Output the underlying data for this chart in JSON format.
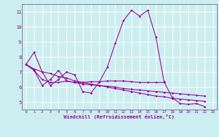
{
  "background_color": "#cceef0",
  "line_color": "#990099",
  "grid_color": "#ffffff",
  "xlabel": "Windchill (Refroidissement éolien,°C)",
  "xlabel_color": "#990099",
  "tick_color": "#990099",
  "spine_color": "#666688",
  "xlim": [
    -0.5,
    23.5
  ],
  "ylim": [
    4.5,
    11.5
  ],
  "yticks": [
    5,
    6,
    7,
    8,
    9,
    10,
    11
  ],
  "xticks": [
    0,
    1,
    2,
    3,
    4,
    5,
    6,
    7,
    8,
    9,
    10,
    11,
    12,
    13,
    14,
    15,
    16,
    17,
    18,
    19,
    20,
    21,
    22,
    23
  ],
  "series": [
    [
      7.5,
      8.3,
      7.0,
      6.1,
      6.5,
      7.0,
      6.8,
      5.7,
      5.6,
      6.3,
      7.3,
      8.9,
      10.4,
      11.1,
      10.7,
      11.1,
      9.3,
      6.35,
      5.3,
      4.9,
      4.85,
      4.9,
      4.7
    ],
    [
      7.5,
      7.1,
      6.1,
      6.5,
      7.1,
      6.4,
      6.3,
      6.3,
      6.35,
      6.35,
      6.4,
      6.4,
      6.4,
      6.35,
      6.3,
      6.3,
      6.3,
      6.3
    ],
    [
      7.5,
      7.2,
      7.0,
      6.9,
      6.7,
      6.6,
      6.4,
      6.3,
      6.2,
      6.1,
      6.0,
      5.9,
      5.8,
      5.7,
      5.6,
      5.5,
      5.4,
      5.35,
      5.25,
      5.2,
      5.15,
      5.1,
      5.05
    ],
    [
      7.5,
      7.1,
      6.5,
      6.3,
      6.3,
      6.4,
      6.3,
      6.2,
      6.15,
      6.1,
      6.05,
      6.0,
      5.9,
      5.85,
      5.8,
      5.75,
      5.7,
      5.65,
      5.6,
      5.55,
      5.5,
      5.45,
      5.4
    ]
  ],
  "series_x": [
    [
      0,
      1,
      2,
      3,
      4,
      5,
      6,
      7,
      8,
      9,
      10,
      11,
      12,
      13,
      14,
      15,
      16,
      17,
      18,
      19,
      20,
      21,
      22
    ],
    [
      0,
      1,
      2,
      3,
      4,
      5,
      6,
      7,
      8,
      9,
      10,
      11,
      12,
      13,
      14,
      15,
      16,
      17
    ],
    [
      0,
      1,
      2,
      3,
      4,
      5,
      6,
      7,
      8,
      9,
      10,
      11,
      12,
      13,
      14,
      15,
      16,
      17,
      18,
      19,
      20,
      21,
      22
    ],
    [
      0,
      1,
      2,
      3,
      4,
      5,
      6,
      7,
      8,
      9,
      10,
      11,
      12,
      13,
      14,
      15,
      16,
      17,
      18,
      19,
      20,
      21,
      22
    ]
  ]
}
